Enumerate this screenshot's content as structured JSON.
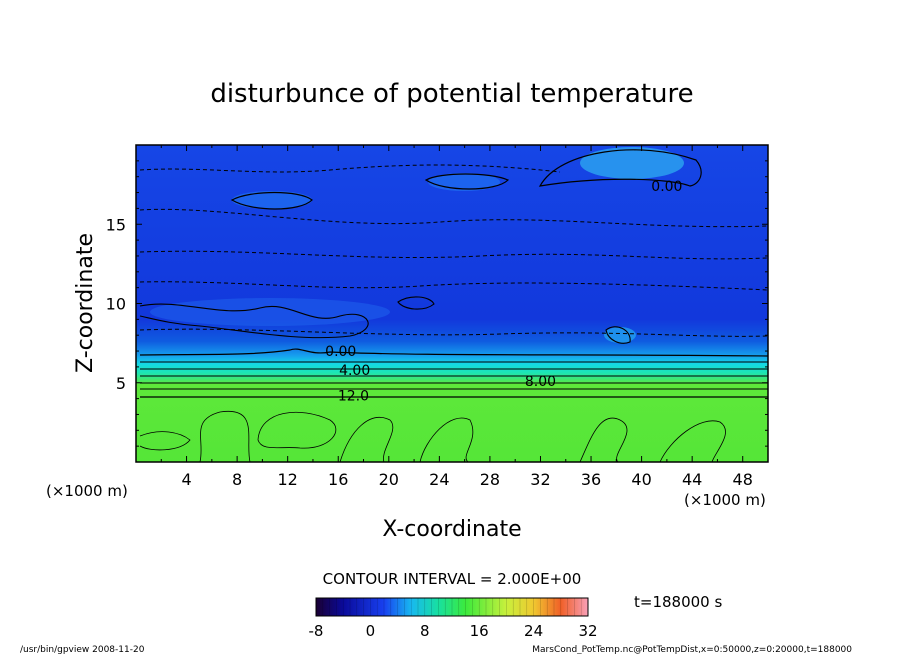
{
  "chart_data": {
    "type": "heatmap",
    "title": "disturbunce of potential temperature",
    "xlabel": "X-coordinate",
    "ylabel": "Z-coordinate",
    "x_unit_left": "(×1000 m)",
    "x_unit_right": "(×1000 m)",
    "xlim": [
      0,
      50
    ],
    "ylim": [
      0,
      20
    ],
    "x_ticks": [
      4,
      8,
      12,
      16,
      20,
      24,
      28,
      32,
      36,
      40,
      44,
      48
    ],
    "y_ticks": [
      5,
      10,
      15
    ],
    "contour_labels": [
      {
        "text": "0.00",
        "x": 42.0,
        "z": 17.4
      },
      {
        "text": "0.00",
        "x": 16.2,
        "z": 7.0
      },
      {
        "text": "4.00",
        "x": 17.3,
        "z": 5.8
      },
      {
        "text": "8.00",
        "x": 32.0,
        "z": 5.1
      },
      {
        "text": "12.0",
        "x": 17.2,
        "z": 4.2
      }
    ],
    "contour_interval_text": "CONTOUR INTERVAL = 2.000E+00",
    "colorbar": {
      "min": -8,
      "max": 32,
      "tick_labels": [
        "-8",
        "0",
        "8",
        "16",
        "24",
        "32"
      ]
    },
    "time_label": "t=188000 s",
    "footer_left": "/usr/bin/gpview  2008-11-20",
    "footer_right": "MarsCond_PotTemp.nc@PotTempDist,x=0:50000,z=0:20000,t=188000"
  }
}
